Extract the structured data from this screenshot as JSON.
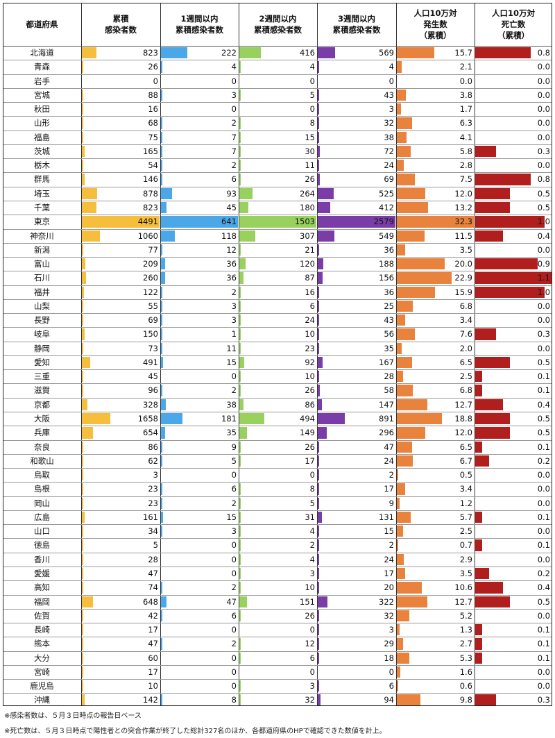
{
  "headers": [
    {
      "lines": [
        "都道府県"
      ]
    },
    {
      "lines": [
        "累積",
        "感染者数"
      ]
    },
    {
      "lines": [
        "1週間以内",
        "累積感染者数"
      ]
    },
    {
      "lines": [
        "2週間以内",
        "累積感染者数"
      ]
    },
    {
      "lines": [
        "3週間以内",
        "累積感染者数"
      ]
    },
    {
      "lines": [
        "人口10万対",
        "発生数",
        "（累積）"
      ]
    },
    {
      "lines": [
        "人口10万対",
        "死亡数",
        "（累積）"
      ]
    }
  ],
  "colors": {
    "cumulative": "#f5be3c",
    "week1": "#4aa8e8",
    "week2": "#98d15e",
    "week3": "#7a3da8",
    "incidence": "#e8823c",
    "deaths": "#b01e1e"
  },
  "chart_data": {
    "type": "table",
    "columns": [
      "累積感染者数",
      "1週間以内累積感染者数",
      "2週間以内累積感染者数",
      "3週間以内累積感染者数",
      "人口10万対発生数（累積）",
      "人口10万対死亡数（累積）"
    ],
    "rows": [
      {
        "pref": "北海道",
        "values": [
          823,
          222,
          416,
          569,
          "15.7",
          "0.8"
        ]
      },
      {
        "pref": "青森",
        "values": [
          26,
          4,
          4,
          4,
          "2.1",
          "0.0"
        ]
      },
      {
        "pref": "岩手",
        "values": [
          0,
          0,
          0,
          0,
          "0.0",
          "0.0"
        ]
      },
      {
        "pref": "宮城",
        "values": [
          88,
          3,
          5,
          43,
          "3.8",
          "0.0"
        ]
      },
      {
        "pref": "秋田",
        "values": [
          16,
          0,
          0,
          3,
          "1.7",
          "0.0"
        ]
      },
      {
        "pref": "山形",
        "values": [
          68,
          2,
          8,
          32,
          "6.3",
          "0.0"
        ]
      },
      {
        "pref": "福島",
        "values": [
          75,
          7,
          15,
          38,
          "4.1",
          "0.0"
        ]
      },
      {
        "pref": "茨城",
        "values": [
          165,
          7,
          30,
          72,
          "5.8",
          "0.3"
        ]
      },
      {
        "pref": "栃木",
        "values": [
          54,
          2,
          11,
          24,
          "2.8",
          "0.0"
        ]
      },
      {
        "pref": "群馬",
        "values": [
          146,
          6,
          26,
          69,
          "7.5",
          "0.8"
        ]
      },
      {
        "pref": "埼玉",
        "values": [
          878,
          93,
          264,
          525,
          "12.0",
          "0.5"
        ]
      },
      {
        "pref": "千葉",
        "values": [
          823,
          45,
          180,
          412,
          "13.2",
          "0.5"
        ]
      },
      {
        "pref": "東京",
        "values": [
          4491,
          641,
          1503,
          2579,
          "32.3",
          "1.0"
        ]
      },
      {
        "pref": "神奈川",
        "values": [
          1060,
          118,
          307,
          549,
          "11.5",
          "0.4"
        ]
      },
      {
        "pref": "新潟",
        "values": [
          77,
          12,
          21,
          36,
          "3.5",
          "0.0"
        ]
      },
      {
        "pref": "富山",
        "values": [
          209,
          36,
          120,
          188,
          "20.0",
          "0.9"
        ]
      },
      {
        "pref": "石川",
        "values": [
          260,
          36,
          87,
          156,
          "22.9",
          "1.1"
        ]
      },
      {
        "pref": "福井",
        "values": [
          122,
          2,
          16,
          36,
          "15.9",
          "1.0"
        ]
      },
      {
        "pref": "山梨",
        "values": [
          55,
          3,
          6,
          25,
          "6.8",
          "0.0"
        ]
      },
      {
        "pref": "長野",
        "values": [
          69,
          3,
          24,
          43,
          "3.4",
          "0.0"
        ]
      },
      {
        "pref": "岐阜",
        "values": [
          150,
          1,
          10,
          56,
          "7.6",
          "0.3"
        ]
      },
      {
        "pref": "静岡",
        "values": [
          73,
          11,
          23,
          35,
          "2.0",
          "0.0"
        ]
      },
      {
        "pref": "愛知",
        "values": [
          491,
          15,
          92,
          167,
          "6.5",
          "0.5"
        ]
      },
      {
        "pref": "三重",
        "values": [
          45,
          0,
          10,
          28,
          "2.5",
          "0.1"
        ]
      },
      {
        "pref": "滋賀",
        "values": [
          96,
          2,
          26,
          58,
          "6.8",
          "0.1"
        ]
      },
      {
        "pref": "京都",
        "values": [
          328,
          38,
          86,
          147,
          "12.7",
          "0.4"
        ]
      },
      {
        "pref": "大阪",
        "values": [
          1658,
          181,
          494,
          891,
          "18.8",
          "0.5"
        ]
      },
      {
        "pref": "兵庫",
        "values": [
          654,
          35,
          149,
          296,
          "12.0",
          "0.5"
        ]
      },
      {
        "pref": "奈良",
        "values": [
          86,
          9,
          26,
          47,
          "6.5",
          "0.1"
        ]
      },
      {
        "pref": "和歌山",
        "values": [
          62,
          5,
          17,
          24,
          "6.7",
          "0.2"
        ]
      },
      {
        "pref": "鳥取",
        "values": [
          3,
          0,
          0,
          2,
          "0.5",
          "0.0"
        ]
      },
      {
        "pref": "島根",
        "values": [
          23,
          6,
          8,
          17,
          "3.4",
          "0.0"
        ]
      },
      {
        "pref": "岡山",
        "values": [
          23,
          2,
          5,
          9,
          "1.2",
          "0.0"
        ]
      },
      {
        "pref": "広島",
        "values": [
          161,
          15,
          31,
          131,
          "5.7",
          "0.1"
        ]
      },
      {
        "pref": "山口",
        "values": [
          34,
          3,
          4,
          15,
          "2.5",
          "0.0"
        ]
      },
      {
        "pref": "徳島",
        "values": [
          5,
          0,
          2,
          2,
          "0.7",
          "0.1"
        ]
      },
      {
        "pref": "香川",
        "values": [
          28,
          0,
          4,
          24,
          "2.9",
          "0.0"
        ]
      },
      {
        "pref": "愛媛",
        "values": [
          47,
          0,
          3,
          17,
          "3.5",
          "0.2"
        ]
      },
      {
        "pref": "高知",
        "values": [
          74,
          2,
          10,
          20,
          "10.6",
          "0.4"
        ]
      },
      {
        "pref": "福岡",
        "values": [
          648,
          47,
          151,
          322,
          "12.7",
          "0.5"
        ]
      },
      {
        "pref": "佐賀",
        "values": [
          42,
          6,
          26,
          32,
          "5.2",
          "0.0"
        ]
      },
      {
        "pref": "長崎",
        "values": [
          17,
          0,
          0,
          3,
          "1.3",
          "0.1"
        ]
      },
      {
        "pref": "熊本",
        "values": [
          47,
          2,
          12,
          29,
          "2.7",
          "0.1"
        ]
      },
      {
        "pref": "大分",
        "values": [
          60,
          0,
          6,
          18,
          "5.3",
          "0.1"
        ]
      },
      {
        "pref": "宮崎",
        "values": [
          17,
          0,
          0,
          0,
          "1.6",
          "0.0"
        ]
      },
      {
        "pref": "鹿児島",
        "values": [
          10,
          0,
          3,
          6,
          "0.6",
          "0.0"
        ]
      },
      {
        "pref": "沖縄",
        "values": [
          142,
          8,
          32,
          94,
          "9.8",
          "0.3"
        ]
      }
    ]
  },
  "notes": [
    "※感染者数は、５月３日時点の報告日ベース",
    "※死亡数は、５月３日時点で陽性者との突合作業が終了した総計327名のほか、各都道府県のHPで確認できた数値を計上。"
  ]
}
